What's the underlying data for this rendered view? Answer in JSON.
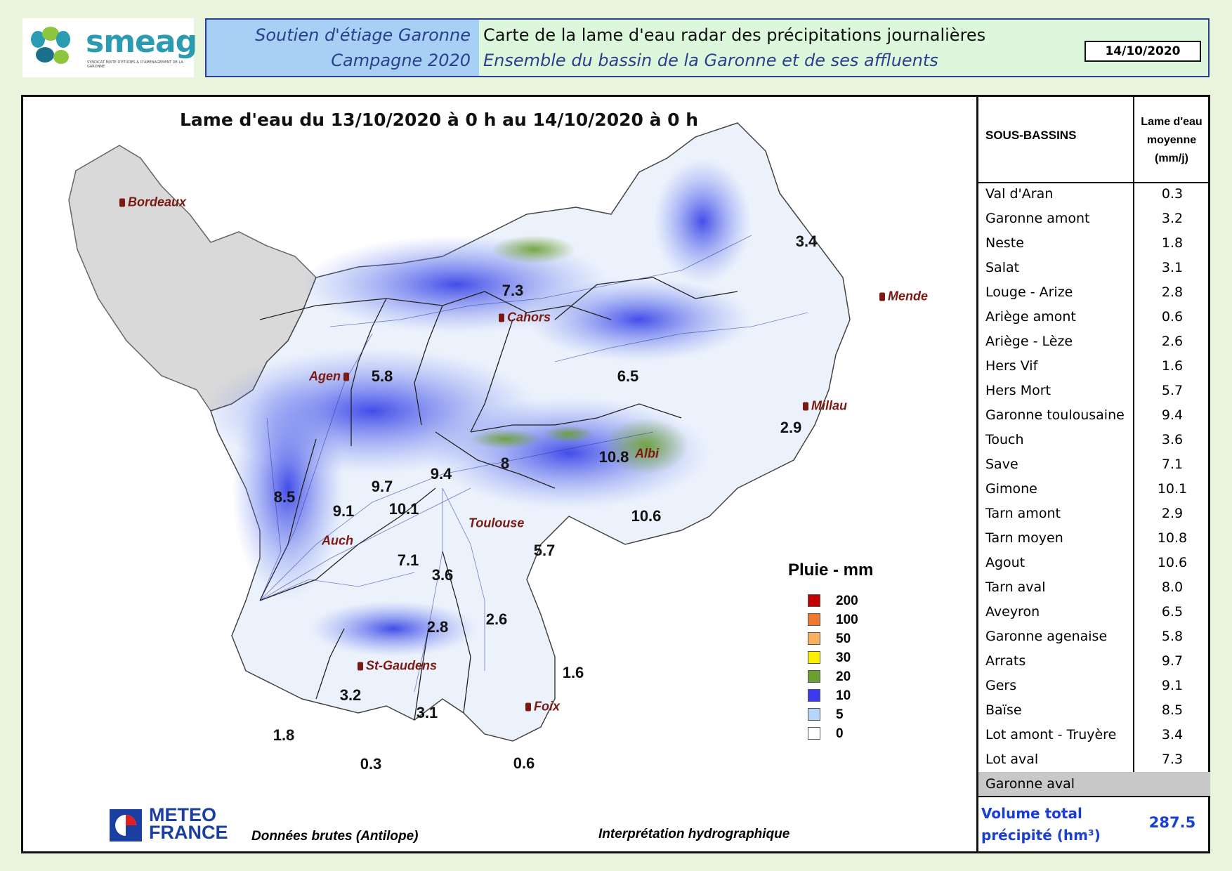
{
  "header": {
    "left_line1": "Soutien d'étiage Garonne",
    "left_line2": "Campagne 2020",
    "right_line1": "Carte de la lame d'eau radar des précipitations journalières",
    "right_line2": "Ensemble du bassin de la Garonne et de ses affluents",
    "date": "14/10/2020"
  },
  "logo": {
    "name": "smeag",
    "subtitle": "SYNDICAT MIXTE D'ETUDES & D'AMENAGEMENT DE LA GARONNE"
  },
  "map": {
    "title": "Lame d'eau du 13/10/2020 à 0 h au 14/10/2020 à 0 h",
    "cities": [
      "Bordeaux",
      "Cahors",
      "Mende",
      "Agen",
      "Millau",
      "Albi",
      "Auch",
      "Toulouse",
      "St-Gaudens",
      "Foix"
    ],
    "values": [
      "3.4",
      "7.3",
      "5.8",
      "6.5",
      "2.9",
      "10.8",
      "8",
      "9.4",
      "9.7",
      "8.5",
      "9.1",
      "10.1",
      "10.6",
      "7.1",
      "5.7",
      "3.6",
      "2.6",
      "2.8",
      "1.6",
      "3.2",
      "3.1",
      "1.8",
      "0.3",
      "0.6"
    ],
    "legend": {
      "title": "Pluie - mm",
      "items": [
        {
          "value": "200",
          "color": "#c40000"
        },
        {
          "value": "100",
          "color": "#f07830"
        },
        {
          "value": "50",
          "color": "#f8b060"
        },
        {
          "value": "30",
          "color": "#f8f000"
        },
        {
          "value": "20",
          "color": "#6aa030"
        },
        {
          "value": "10",
          "color": "#3a3af0"
        },
        {
          "value": "5",
          "color": "#b8d4f8"
        },
        {
          "value": "0",
          "color": "#ffffff"
        }
      ]
    },
    "meteo_france": "METEO FRANCE",
    "source_left": "Données brutes (Antilope)",
    "source_right": "Interprétation hydrographique"
  },
  "table": {
    "col1": "SOUS-BASSINS",
    "col2": "Lame d'eau moyenne (mm/j)",
    "rows": [
      {
        "name": "Val d'Aran",
        "value": "0.3"
      },
      {
        "name": "Garonne amont",
        "value": "3.2"
      },
      {
        "name": "Neste",
        "value": "1.8"
      },
      {
        "name": "Salat",
        "value": "3.1"
      },
      {
        "name": "Louge - Arize",
        "value": "2.8"
      },
      {
        "name": "Ariège amont",
        "value": "0.6"
      },
      {
        "name": "Ariège - Lèze",
        "value": "2.6"
      },
      {
        "name": "Hers Vif",
        "value": "1.6"
      },
      {
        "name": "Hers Mort",
        "value": "5.7"
      },
      {
        "name": "Garonne toulousaine",
        "value": "9.4"
      },
      {
        "name": "Touch",
        "value": "3.6"
      },
      {
        "name": "Save",
        "value": "7.1"
      },
      {
        "name": "Gimone",
        "value": "10.1"
      },
      {
        "name": "Tarn amont",
        "value": "2.9"
      },
      {
        "name": "Tarn moyen",
        "value": "10.8"
      },
      {
        "name": "Agout",
        "value": "10.6"
      },
      {
        "name": "Tarn aval",
        "value": "8.0"
      },
      {
        "name": "Aveyron",
        "value": "6.5"
      },
      {
        "name": "Garonne agenaise",
        "value": "5.8"
      },
      {
        "name": "Arrats",
        "value": "9.7"
      },
      {
        "name": "Gers",
        "value": "9.1"
      },
      {
        "name": "Baïse",
        "value": "8.5"
      },
      {
        "name": "Lot amont - Truyère",
        "value": "3.4"
      },
      {
        "name": "Lot aval",
        "value": "7.3"
      },
      {
        "name": "Garonne aval",
        "value": ""
      }
    ],
    "total_label": "Volume total précipité (hm³)",
    "total_value": "287.5"
  }
}
